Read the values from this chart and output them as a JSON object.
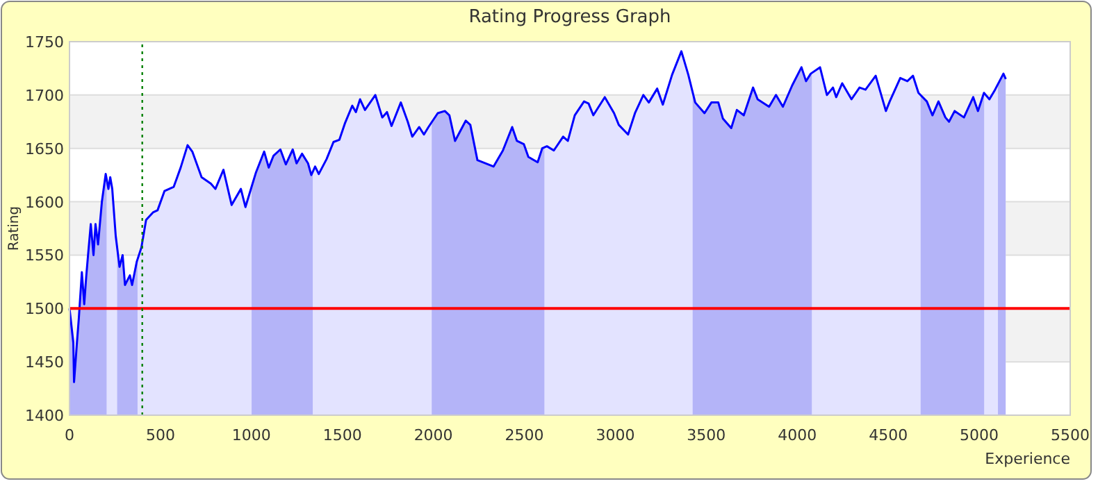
{
  "chart_data": {
    "type": "area",
    "title": "Rating Progress Graph",
    "xlabel": "Experience",
    "ylabel": "Rating",
    "xlim": [
      0,
      5500
    ],
    "xticks": [
      0,
      500,
      1000,
      1500,
      2000,
      2500,
      3000,
      3500,
      4000,
      4500,
      5000,
      5500
    ],
    "ylim": [
      1400,
      1750
    ],
    "yticks": [
      1400,
      1450,
      1500,
      1550,
      1600,
      1650,
      1700,
      1750
    ],
    "grid": "y",
    "series": [
      {
        "color": "#0000ff",
        "x": [
          0,
          21,
          25,
          41,
          51,
          68,
          81,
          92,
          102,
          117,
          132,
          143,
          157,
          168,
          178,
          199,
          214,
          224,
          235,
          254,
          275,
          292,
          305,
          332,
          344,
          370,
          395,
          421,
          459,
          484,
          522,
          573,
          611,
          649,
          675,
          726,
          777,
          802,
          846,
          891,
          942,
          967,
          1024,
          1070,
          1095,
          1121,
          1159,
          1189,
          1227,
          1248,
          1278,
          1311,
          1329,
          1350,
          1370,
          1413,
          1451,
          1483,
          1515,
          1554,
          1574,
          1597,
          1624,
          1681,
          1719,
          1745,
          1770,
          1821,
          1859,
          1884,
          1922,
          1948,
          1973,
          2024,
          2063,
          2088,
          2119,
          2178,
          2203,
          2242,
          2331,
          2382,
          2433,
          2459,
          2497,
          2522,
          2573,
          2598,
          2624,
          2662,
          2713,
          2739,
          2777,
          2828,
          2853,
          2879,
          2942,
          2993,
          3019,
          3070,
          3108,
          3154,
          3184,
          3230,
          3261,
          3312,
          3363,
          3401,
          3439,
          3490,
          3528,
          3566,
          3591,
          3637,
          3668,
          3706,
          3757,
          3782,
          3845,
          3883,
          3921,
          3972,
          4023,
          4048,
          4074,
          4125,
          4163,
          4196,
          4214,
          4247,
          4298,
          4342,
          4375,
          4431,
          4487,
          4508,
          4566,
          4605,
          4636,
          4666,
          4712,
          4743,
          4776,
          4814,
          4834,
          4865,
          4916,
          4967,
          4993,
          5026,
          5056,
          5087,
          5133,
          5146
        ],
        "values": [
          1500,
          1468,
          1431,
          1468,
          1490,
          1534,
          1504,
          1530,
          1550,
          1579,
          1550,
          1579,
          1560,
          1581,
          1600,
          1626,
          1612,
          1623,
          1612,
          1568,
          1539,
          1550,
          1522,
          1531,
          1522,
          1544,
          1557,
          1583,
          1590,
          1592,
          1610,
          1614,
          1632,
          1653,
          1647,
          1623,
          1617,
          1612,
          1630,
          1597,
          1612,
          1595,
          1627,
          1647,
          1632,
          1643,
          1649,
          1635,
          1649,
          1636,
          1645,
          1636,
          1625,
          1633,
          1626,
          1640,
          1656,
          1658,
          1674,
          1690,
          1684,
          1696,
          1686,
          1700,
          1679,
          1684,
          1671,
          1693,
          1675,
          1661,
          1670,
          1663,
          1670,
          1683,
          1685,
          1681,
          1657,
          1676,
          1672,
          1639,
          1633,
          1648,
          1670,
          1657,
          1654,
          1642,
          1637,
          1650,
          1652,
          1648,
          1661,
          1657,
          1681,
          1694,
          1692,
          1681,
          1698,
          1683,
          1672,
          1663,
          1683,
          1700,
          1693,
          1706,
          1691,
          1719,
          1741,
          1719,
          1693,
          1683,
          1693,
          1693,
          1678,
          1669,
          1686,
          1681,
          1707,
          1696,
          1689,
          1700,
          1689,
          1709,
          1726,
          1713,
          1720,
          1726,
          1700,
          1707,
          1698,
          1711,
          1696,
          1707,
          1705,
          1718,
          1685,
          1694,
          1716,
          1713,
          1718,
          1702,
          1694,
          1681,
          1694,
          1679,
          1675,
          1685,
          1679,
          1698,
          1685,
          1702,
          1696,
          1705,
          1720,
          1715
        ]
      }
    ],
    "bands": [
      {
        "axis": "x",
        "from": 0,
        "to": 204,
        "color": "#cbcbf8"
      },
      {
        "axis": "x",
        "from": 262,
        "to": 374,
        "color": "#cbcbf8"
      },
      {
        "axis": "x",
        "from": 1001,
        "to": 1337,
        "color": "#cbcbf8"
      },
      {
        "axis": "x",
        "from": 1991,
        "to": 2610,
        "color": "#cbcbf8"
      },
      {
        "axis": "x",
        "from": 3425,
        "to": 4080,
        "color": "#cbcbf8"
      },
      {
        "axis": "x",
        "from": 4678,
        "to": 5027,
        "color": "#cbcbf8"
      },
      {
        "axis": "x",
        "from": 5103,
        "to": 5146,
        "color": "#cbcbf8"
      }
    ],
    "ref_lines": [
      {
        "axis": "y",
        "value": 1500,
        "color": "#ff0000",
        "line_style": "solid"
      },
      {
        "axis": "x",
        "value": 400,
        "color": "#008000",
        "line_style": "dotted"
      }
    ]
  }
}
